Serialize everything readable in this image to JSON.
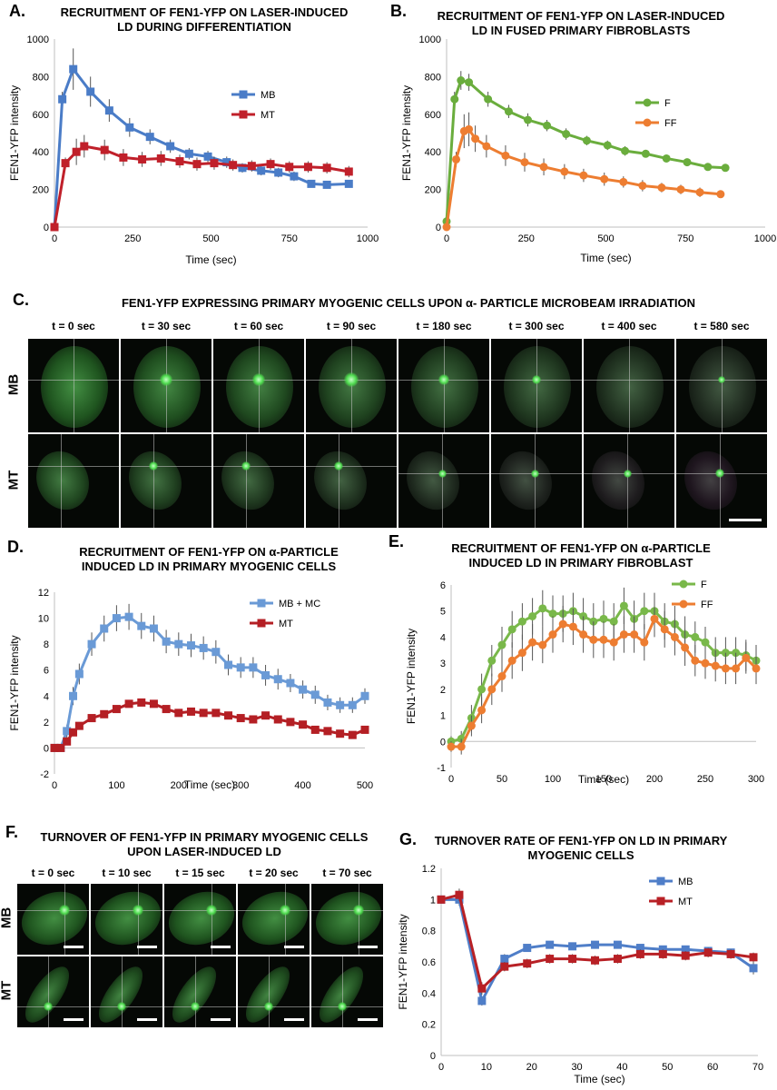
{
  "panels": {
    "A": {
      "letter": "A.",
      "title_lines": [
        "RECRUITMENT OF FEN1-YFP ON LASER-INDUCED",
        "LD DURING DIFFERENTIATION"
      ]
    },
    "B": {
      "letter": "B.",
      "title_lines": [
        "RECRUITMENT OF FEN1-YFP ON LASER-INDUCED",
        "LD IN FUSED PRIMARY FIBROBLASTS"
      ]
    },
    "C": {
      "letter": "C.",
      "title": "FEN1-YFP EXPRESSING PRIMARY MYOGENIC CELLS UPON α- PARTICLE MICROBEAM IRRADIATION",
      "times": [
        "t = 0 sec",
        "t = 30 sec",
        "t = 60 sec",
        "t = 90 sec",
        "t = 180 sec",
        "t = 300 sec",
        "t = 400 sec",
        "t = 580 sec"
      ],
      "rows": [
        "MB",
        "MT"
      ]
    },
    "D": {
      "letter": "D.",
      "title_lines": [
        "RECRUITMENT OF FEN1-YFP ON α-PARTICLE",
        "INDUCED LD IN PRIMARY MYOGENIC CELLS"
      ]
    },
    "E": {
      "letter": "E.",
      "title_lines": [
        "RECRUITMENT OF FEN1-YFP ON α-PARTICLE",
        "INDUCED LD IN PRIMARY FIBROBLAST"
      ]
    },
    "F": {
      "letter": "F.",
      "title_lines": [
        "TURNOVER OF FEN1-YFP IN PRIMARY MYOGENIC CELLS",
        "UPON LASER-INDUCED LD"
      ],
      "times": [
        "t = 0 sec",
        "t = 10 sec",
        "t = 15 sec",
        "t = 20 sec",
        "t = 70 sec"
      ],
      "rows": [
        "MB",
        "MT"
      ]
    },
    "G": {
      "letter": "G.",
      "title_lines": [
        "TURNOVER RATE OF FEN1-YFP ON LD IN PRIMARY",
        "MYOGENIC CELLS"
      ]
    }
  },
  "chart_data": [
    {
      "id": "A",
      "type": "line",
      "xlabel": "Time (sec)",
      "ylabel": "FEN1-YFP intensity",
      "xlim": [
        0,
        1000
      ],
      "ylim": [
        0,
        1000
      ],
      "xticks": [
        0,
        250,
        500,
        750,
        1000
      ],
      "xtick_labels": [
        "0",
        "250",
        "500",
        "750",
        "1000"
      ],
      "yticks": [
        0,
        200,
        400,
        600,
        800,
        1000
      ],
      "ytick_labels": [
        "0",
        "200",
        "400",
        "600",
        "800",
        "1000"
      ],
      "legend_pos": "top-right",
      "series": [
        {
          "name": "MB",
          "color": "#4a7cc7",
          "marker": "square",
          "x": [
            0,
            25,
            60,
            115,
            175,
            240,
            305,
            370,
            430,
            490,
            550,
            600,
            660,
            715,
            765,
            820,
            870,
            940
          ],
          "y": [
            0,
            680,
            840,
            720,
            620,
            530,
            480,
            430,
            390,
            375,
            345,
            315,
            300,
            290,
            270,
            230,
            225,
            230
          ],
          "err": [
            0,
            40,
            110,
            80,
            60,
            50,
            40,
            35,
            30,
            30,
            30,
            25,
            25,
            25,
            25,
            20,
            20,
            20
          ]
        },
        {
          "name": "MT",
          "color": "#c0202a",
          "marker": "square",
          "x": [
            0,
            35,
            70,
            95,
            160,
            220,
            280,
            340,
            400,
            455,
            510,
            570,
            630,
            690,
            750,
            810,
            870,
            940
          ],
          "y": [
            0,
            340,
            400,
            430,
            410,
            370,
            360,
            365,
            350,
            335,
            340,
            330,
            325,
            335,
            320,
            320,
            315,
            295
          ],
          "err": [
            0,
            30,
            70,
            60,
            55,
            45,
            40,
            40,
            35,
            35,
            35,
            30,
            30,
            30,
            30,
            30,
            30,
            30
          ]
        }
      ]
    },
    {
      "id": "B",
      "type": "line",
      "xlabel": "Time (sec)",
      "ylabel": "FEN1-YFP intensity",
      "xlim": [
        0,
        1000
      ],
      "ylim": [
        0,
        1000
      ],
      "xticks": [
        0,
        250,
        500,
        750,
        1000
      ],
      "xtick_labels": [
        "0",
        "250",
        "500",
        "750",
        "1000"
      ],
      "yticks": [
        0,
        200,
        400,
        600,
        800,
        1000
      ],
      "ytick_labels": [
        "0",
        "200",
        "400",
        "600",
        "800",
        "1000"
      ],
      "legend_pos": "top-right",
      "series": [
        {
          "name": "F",
          "color": "#6aad3d",
          "marker": "circle",
          "x": [
            0,
            25,
            45,
            70,
            130,
            195,
            255,
            315,
            375,
            440,
            505,
            560,
            625,
            690,
            755,
            820,
            875
          ],
          "y": [
            30,
            680,
            780,
            770,
            680,
            615,
            570,
            540,
            495,
            460,
            435,
            405,
            390,
            365,
            345,
            320,
            315
          ],
          "err": [
            0,
            40,
            50,
            45,
            40,
            35,
            35,
            30,
            30,
            25,
            25,
            25,
            20,
            20,
            20,
            20,
            20
          ]
        },
        {
          "name": "FF",
          "color": "#ed7d31",
          "marker": "circle",
          "x": [
            0,
            30,
            55,
            70,
            90,
            125,
            185,
            245,
            305,
            370,
            430,
            495,
            555,
            615,
            675,
            735,
            795,
            860
          ],
          "y": [
            0,
            360,
            510,
            520,
            470,
            430,
            380,
            345,
            320,
            295,
            275,
            255,
            240,
            220,
            210,
            200,
            185,
            175
          ],
          "err": [
            0,
            40,
            90,
            90,
            70,
            60,
            55,
            50,
            45,
            40,
            35,
            35,
            30,
            30,
            25,
            25,
            25,
            20
          ]
        }
      ]
    },
    {
      "id": "D",
      "type": "line",
      "xlabel": "Time (sec)",
      "ylabel": "FEN1-YFP intensity",
      "xlim": [
        0,
        500
      ],
      "ylim": [
        -2,
        12
      ],
      "xticks": [
        0,
        100,
        200,
        300,
        400,
        500
      ],
      "xtick_labels": [
        "0",
        "100",
        "200",
        "300",
        "400",
        "500"
      ],
      "yticks": [
        -2,
        0,
        2,
        4,
        6,
        8,
        10,
        12
      ],
      "ytick_labels": [
        "-2",
        "0",
        "2",
        "4",
        "6",
        "8",
        "10",
        "12"
      ],
      "legend_pos": "top-right",
      "series": [
        {
          "name": "MB + MC",
          "color": "#6a9ad6",
          "marker": "square",
          "x": [
            0,
            10,
            20,
            30,
            40,
            60,
            80,
            100,
            120,
            140,
            160,
            180,
            200,
            220,
            240,
            260,
            280,
            300,
            320,
            340,
            360,
            380,
            400,
            420,
            440,
            460,
            480,
            500
          ],
          "y": [
            0,
            0,
            1.3,
            4,
            5.7,
            8,
            9.2,
            10,
            10.1,
            9.4,
            9.2,
            8.2,
            8,
            7.9,
            7.7,
            7.4,
            6.4,
            6.2,
            6.2,
            5.6,
            5.3,
            5,
            4.5,
            4.1,
            3.5,
            3.3,
            3.3,
            4
          ],
          "err": [
            0.2,
            0.3,
            0.5,
            0.7,
            0.8,
            0.9,
            1.0,
            1.0,
            1.0,
            1.0,
            1.0,
            0.9,
            0.9,
            0.9,
            0.9,
            0.9,
            0.8,
            0.8,
            0.8,
            0.8,
            0.8,
            0.7,
            0.7,
            0.7,
            0.6,
            0.6,
            0.6,
            0.6
          ]
        },
        {
          "name": "MT",
          "color": "#b41f24",
          "marker": "square",
          "x": [
            0,
            10,
            20,
            30,
            40,
            60,
            80,
            100,
            120,
            140,
            160,
            180,
            200,
            220,
            240,
            260,
            280,
            300,
            320,
            340,
            360,
            380,
            400,
            420,
            440,
            460,
            480,
            500
          ],
          "y": [
            0,
            0,
            0.5,
            1.2,
            1.7,
            2.3,
            2.6,
            3,
            3.4,
            3.5,
            3.4,
            3,
            2.7,
            2.8,
            2.7,
            2.7,
            2.5,
            2.3,
            2.2,
            2.5,
            2.2,
            2,
            1.8,
            1.4,
            1.3,
            1.1,
            1,
            1.4
          ],
          "err": [
            0.1,
            0.1,
            0.2,
            0.2,
            0.2,
            0.2,
            0.2,
            0.2,
            0.2,
            0.2,
            0.2,
            0.2,
            0.2,
            0.2,
            0.2,
            0.2,
            0.2,
            0.2,
            0.2,
            0.2,
            0.2,
            0.2,
            0.2,
            0.2,
            0.2,
            0.2,
            0.2,
            0.2
          ]
        }
      ]
    },
    {
      "id": "E",
      "type": "line",
      "xlabel": "Time (sec)",
      "ylabel": "FEN1-YFP intensity",
      "xlim": [
        0,
        300
      ],
      "ylim": [
        -1,
        6
      ],
      "xticks": [
        0,
        50,
        100,
        150,
        200,
        250,
        300
      ],
      "xtick_labels": [
        "0",
        "50",
        "100",
        "150",
        "200",
        "250",
        "300"
      ],
      "yticks": [
        -1,
        0,
        1,
        2,
        3,
        4,
        5,
        6
      ],
      "ytick_labels": [
        "-1",
        "0",
        "1",
        "2",
        "3",
        "4",
        "5",
        "6"
      ],
      "legend_pos": "top-right",
      "series": [
        {
          "name": "F",
          "color": "#79b84a",
          "marker": "circle",
          "x": [
            0,
            10,
            20,
            30,
            40,
            50,
            60,
            70,
            80,
            90,
            100,
            110,
            120,
            130,
            140,
            150,
            160,
            170,
            180,
            190,
            200,
            210,
            220,
            230,
            240,
            250,
            260,
            270,
            280,
            290,
            300
          ],
          "y": [
            0,
            0.1,
            0.9,
            2,
            3.1,
            3.7,
            4.3,
            4.6,
            4.8,
            5.1,
            4.9,
            4.9,
            5,
            4.8,
            4.6,
            4.7,
            4.6,
            5.2,
            4.7,
            5,
            5,
            4.6,
            4.5,
            4.1,
            4,
            3.8,
            3.4,
            3.4,
            3.4,
            3.3,
            3.1
          ],
          "err": [
            0.2,
            0.3,
            0.5,
            0.6,
            0.6,
            0.7,
            0.7,
            0.7,
            0.7,
            0.7,
            0.7,
            0.7,
            0.7,
            0.7,
            0.7,
            0.7,
            0.7,
            0.7,
            0.7,
            0.7,
            0.7,
            0.7,
            0.7,
            0.7,
            0.6,
            0.6,
            0.6,
            0.6,
            0.6,
            0.6,
            0.6
          ]
        },
        {
          "name": "FF",
          "color": "#ed7d31",
          "marker": "circle",
          "x": [
            0,
            10,
            20,
            30,
            40,
            50,
            60,
            70,
            80,
            90,
            100,
            110,
            120,
            130,
            140,
            150,
            160,
            170,
            180,
            190,
            200,
            210,
            220,
            230,
            240,
            250,
            260,
            270,
            280,
            290,
            300
          ],
          "y": [
            -0.2,
            -0.2,
            0.6,
            1.2,
            2,
            2.5,
            3.1,
            3.4,
            3.8,
            3.7,
            4.1,
            4.5,
            4.4,
            4.1,
            3.9,
            3.9,
            3.8,
            4.1,
            4.1,
            3.8,
            4.7,
            4.3,
            4,
            3.6,
            3.1,
            3,
            2.9,
            2.8,
            2.8,
            3.2,
            2.8
          ],
          "err": [
            0.2,
            0.3,
            0.4,
            0.5,
            0.6,
            0.6,
            0.7,
            0.7,
            0.7,
            0.7,
            0.7,
            0.7,
            0.7,
            0.7,
            0.7,
            0.7,
            0.7,
            0.7,
            0.7,
            0.7,
            0.7,
            0.7,
            0.7,
            0.7,
            0.6,
            0.6,
            0.6,
            0.6,
            0.6,
            0.6,
            0.6
          ]
        }
      ]
    },
    {
      "id": "G",
      "type": "line",
      "xlabel": "Time (sec)",
      "ylabel": "FEN1-YFP intensity",
      "xlim": [
        0,
        70
      ],
      "ylim": [
        0,
        1.2
      ],
      "xticks": [
        0,
        10,
        20,
        30,
        40,
        50,
        60,
        70
      ],
      "xtick_labels": [
        "0",
        "10",
        "20",
        "30",
        "40",
        "50",
        "60",
        "70"
      ],
      "yticks": [
        0,
        0.2,
        0.4,
        0.6,
        0.8,
        1,
        1.2
      ],
      "ytick_labels": [
        "0",
        "0.2",
        "0.4",
        "0.6",
        "0.8",
        "1",
        "1.2"
      ],
      "legend_pos": "top-right",
      "series": [
        {
          "name": "MB",
          "color": "#4f7ec8",
          "marker": "square",
          "x": [
            0,
            4,
            9,
            14,
            19,
            24,
            29,
            34,
            39,
            44,
            49,
            54,
            59,
            64,
            69
          ],
          "y": [
            1,
            1,
            0.35,
            0.62,
            0.69,
            0.71,
            0.7,
            0.71,
            0.71,
            0.69,
            0.68,
            0.68,
            0.67,
            0.66,
            0.56
          ],
          "err": [
            0.01,
            0.04,
            0.03,
            0.03,
            0.02,
            0.02,
            0.02,
            0.02,
            0.02,
            0.02,
            0.02,
            0.02,
            0.02,
            0.02,
            0.04
          ]
        },
        {
          "name": "MT",
          "color": "#b82025",
          "marker": "square",
          "x": [
            0,
            4,
            9,
            14,
            19,
            24,
            29,
            34,
            39,
            44,
            49,
            54,
            59,
            64,
            69
          ],
          "y": [
            1,
            1.03,
            0.43,
            0.57,
            0.59,
            0.62,
            0.62,
            0.61,
            0.62,
            0.65,
            0.65,
            0.64,
            0.66,
            0.65,
            0.63
          ],
          "err": [
            0.01,
            0.04,
            0.04,
            0.03,
            0.03,
            0.03,
            0.03,
            0.03,
            0.03,
            0.03,
            0.03,
            0.03,
            0.03,
            0.03,
            0.03
          ]
        }
      ]
    }
  ]
}
